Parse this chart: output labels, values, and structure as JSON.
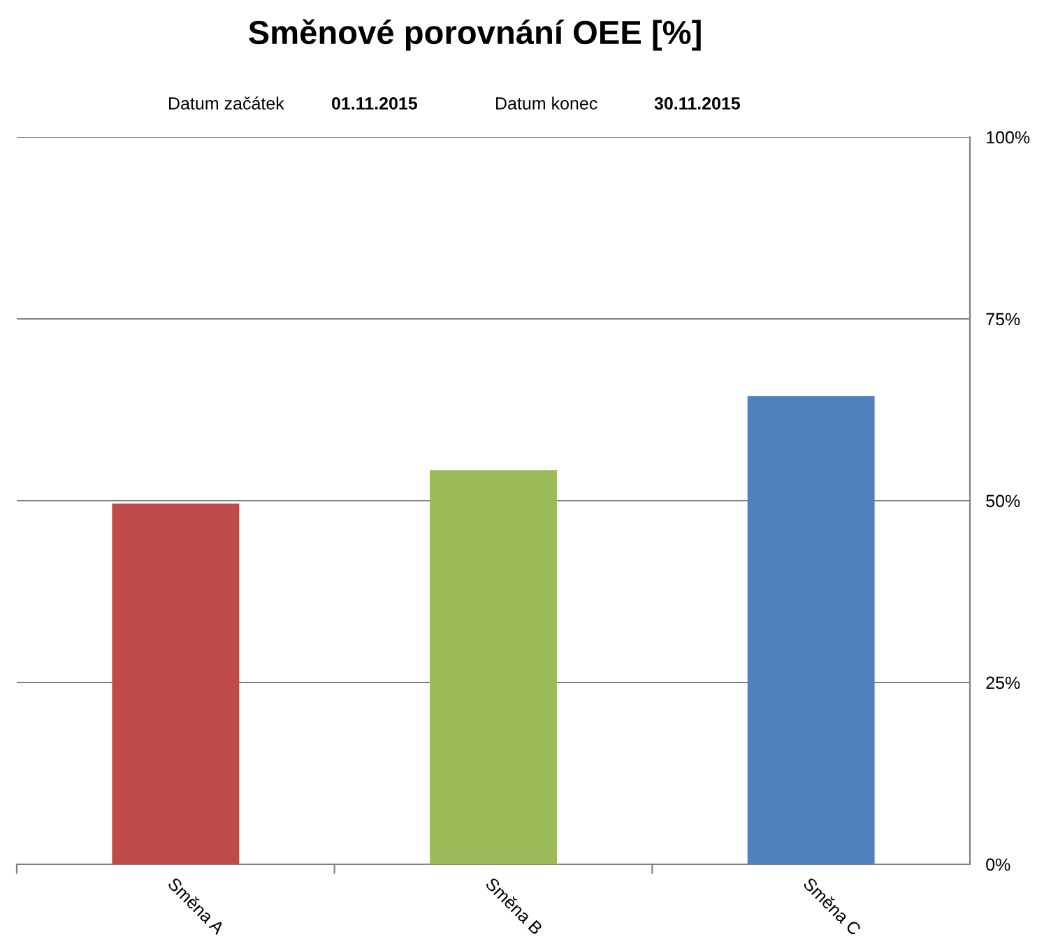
{
  "chart_data": {
    "type": "bar",
    "title": "Směnové porovnání OEE [%]",
    "annotations": [
      "Datum začátek",
      "01.11.2015",
      "Datum konec",
      "30.11.2015"
    ],
    "categories": [
      "Směna A",
      "Směna B",
      "Směna C"
    ],
    "values": [
      49.6,
      54.2,
      64.4
    ],
    "colors": [
      "#be4b48",
      "#9bbb59",
      "#4f81bd"
    ],
    "ylim": [
      0,
      100
    ],
    "yticks": [
      {
        "value": 0,
        "label": "0%"
      },
      {
        "value": 25,
        "label": "25%"
      },
      {
        "value": 50,
        "label": "50%"
      },
      {
        "value": 75,
        "label": "75%"
      },
      {
        "value": 100,
        "label": "100%"
      }
    ],
    "grid": "y",
    "legend": false
  }
}
